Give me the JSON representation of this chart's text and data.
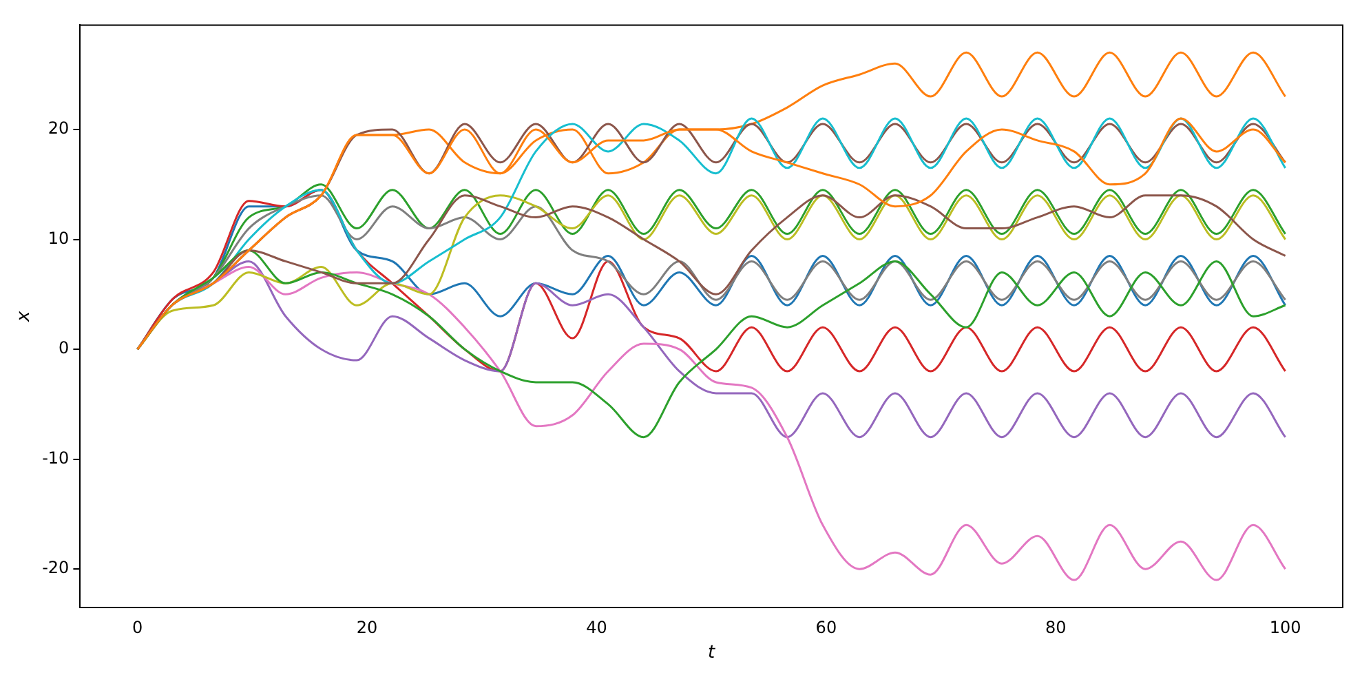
{
  "chart_data": {
    "type": "line",
    "xlabel": "t",
    "ylabel": "x",
    "xlim": [
      -5,
      105
    ],
    "xticks": [
      0,
      20,
      40,
      60,
      80,
      100
    ],
    "ylim": [
      -23.5,
      29.5
    ],
    "yticks": [
      -20,
      -10,
      0,
      10,
      20
    ],
    "grid": false,
    "legend": false,
    "marker": "none",
    "line_style": "solid",
    "x": [
      0,
      3,
      6.6,
      9.7,
      12.9,
      16,
      19.1,
      22.2,
      25.4,
      28.5,
      31.6,
      34.7,
      37.9,
      41,
      44.1,
      47.2,
      50.4,
      53.5,
      56.6,
      59.7,
      62.9,
      66,
      69.1,
      72.2,
      75.3,
      78.4,
      81.6,
      84.7,
      87.8,
      90.9,
      94,
      97.2,
      100
    ],
    "series": [
      {
        "color": "#1f77b4",
        "values": [
          0,
          4.5,
          6.5,
          13,
          13,
          14.5,
          9,
          8,
          5,
          6,
          3,
          6,
          5,
          8.5,
          4,
          7,
          4,
          8.5,
          4,
          8.5,
          4,
          8.5,
          4,
          8.5,
          4,
          8.5,
          4,
          8.5,
          4,
          8.5,
          4,
          8.5,
          4
        ]
      },
      {
        "color": "#ff7f0e",
        "values": [
          0,
          4,
          6,
          9,
          12,
          14,
          19.5,
          19.5,
          20,
          17,
          16,
          19,
          20,
          16,
          17,
          20,
          20,
          20.5,
          22,
          24,
          25,
          26,
          23,
          27,
          23,
          27,
          23,
          27,
          23,
          27,
          23,
          27,
          23
        ]
      },
      {
        "color": "#2ca02c",
        "values": [
          0,
          4,
          6.5,
          12,
          13,
          15,
          11,
          14.5,
          11,
          14.5,
          10.5,
          14.5,
          10.5,
          14.5,
          10.5,
          14.5,
          11,
          14.5,
          10.5,
          14.5,
          10.5,
          14.5,
          10.5,
          14.5,
          10.5,
          14.5,
          10.5,
          14.5,
          10.5,
          14.5,
          10.5,
          14.5,
          10.5
        ]
      },
      {
        "color": "#d62728",
        "values": [
          0,
          4.5,
          7,
          13.5,
          13,
          14.5,
          9,
          6,
          3,
          0,
          -2,
          6,
          1,
          8,
          2,
          1,
          -2,
          2,
          -2,
          2,
          -2,
          2,
          -2,
          2,
          -2,
          2,
          -2,
          2,
          -2,
          2,
          -2,
          2,
          -2
        ]
      },
      {
        "color": "#9467bd",
        "values": [
          0,
          4,
          6,
          8,
          3,
          0,
          -1,
          3,
          1,
          -1,
          -2,
          6,
          4,
          5,
          2,
          -2,
          -4,
          -4,
          -8,
          -4,
          -8,
          -4,
          -8,
          -4,
          -8,
          -4,
          -8,
          -4,
          -8,
          -4,
          -8,
          -4,
          -8
        ]
      },
      {
        "color": "#8c564b",
        "values": [
          0,
          4,
          6,
          9,
          12,
          14,
          19.5,
          20,
          16,
          20.5,
          17,
          20.5,
          17,
          20.5,
          17,
          20.5,
          17,
          20.5,
          17,
          20.5,
          17,
          20.5,
          17,
          20.5,
          17,
          20.5,
          17,
          20.5,
          17,
          20.5,
          17,
          20.5,
          17
        ]
      },
      {
        "color": "#e377c2",
        "values": [
          0,
          4,
          6,
          7.5,
          5,
          6.5,
          7,
          6,
          5,
          2,
          -2,
          -7,
          -6,
          -2,
          0.5,
          0,
          -3,
          -3.5,
          -8,
          -16,
          -20,
          -18.5,
          -20.5,
          -16,
          -19.5,
          -17,
          -21,
          -16,
          -20,
          -17.5,
          -21,
          -16,
          -20
        ]
      },
      {
        "color": "#7f7f7f",
        "values": [
          0,
          4,
          6.5,
          11,
          13,
          14,
          10,
          13,
          11,
          12,
          10,
          13,
          9,
          8,
          5,
          8,
          4.5,
          8,
          4.5,
          8,
          4.5,
          8,
          4.5,
          8,
          4.5,
          8,
          4.5,
          8,
          4.5,
          8,
          4.5,
          8,
          4.5
        ]
      },
      {
        "color": "#bcbd22",
        "values": [
          0,
          3.5,
          4,
          7,
          6,
          7.5,
          4,
          6,
          5,
          12,
          14,
          13,
          11,
          14,
          10,
          14,
          10.5,
          14,
          10,
          14,
          10,
          14,
          10,
          14,
          10,
          14,
          10,
          14,
          10,
          14,
          10,
          14,
          10
        ]
      },
      {
        "color": "#17becf",
        "values": [
          0,
          4,
          6,
          10,
          13,
          14.5,
          9,
          6,
          8,
          10,
          12,
          18,
          20.5,
          18,
          20.5,
          19,
          16,
          21,
          16.5,
          21,
          16.5,
          21,
          16.5,
          21,
          16.5,
          21,
          16.5,
          21,
          16.5,
          21,
          16.5,
          21,
          16.5
        ]
      },
      {
        "color": "#2ca02c",
        "values": [
          0,
          4,
          6.5,
          9,
          6,
          7,
          6,
          5,
          3,
          0,
          -2,
          -3,
          -3,
          -5,
          -8,
          -3,
          0,
          3,
          2,
          4,
          6,
          8,
          5,
          2,
          7,
          4,
          7,
          3,
          7,
          4,
          8,
          3,
          4
        ]
      },
      {
        "color": "#8c564b",
        "values": [
          0,
          4,
          6,
          9,
          8,
          7,
          6,
          6,
          10,
          14,
          13,
          12,
          13,
          12,
          10,
          8,
          5,
          9,
          12,
          14,
          12,
          14,
          13,
          11,
          11,
          12,
          13,
          12,
          14,
          14,
          13,
          10,
          8.5
        ]
      },
      {
        "color": "#ff7f0e",
        "values": [
          0,
          4,
          6,
          9,
          12,
          14,
          19.5,
          19.5,
          16,
          20,
          16,
          20,
          17,
          19,
          19,
          20,
          20,
          18,
          17,
          16,
          15,
          13,
          14,
          18,
          20,
          19,
          18,
          15,
          16,
          21,
          18,
          20,
          17
        ]
      }
    ]
  }
}
